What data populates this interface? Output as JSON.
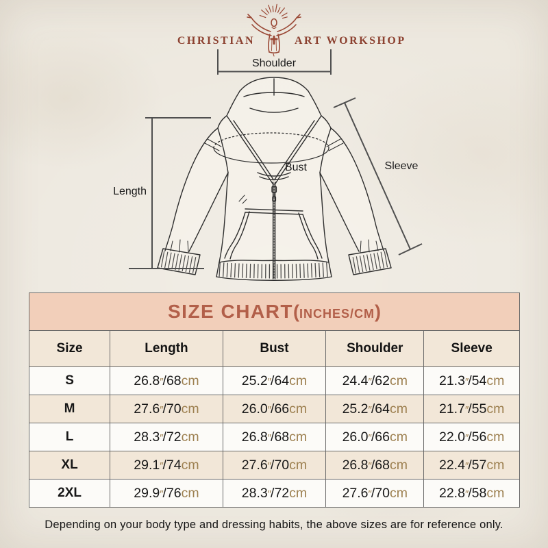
{
  "logo": {
    "left": "CHRISTIAN",
    "right": "ART WORKSHOP"
  },
  "diagram": {
    "shoulder_label": "Shoulder",
    "length_label": "Length",
    "bust_label": "Bust",
    "sleeve_label": "Sleeve"
  },
  "size_chart": {
    "title": "SIZE CHART",
    "paren_open": "(",
    "unit_note": "INCHES/CM",
    "paren_close": ")",
    "columns": [
      "Size",
      "Length",
      "Bust",
      "Shoulder",
      "Sleeve"
    ],
    "symbols": {
      "inch": "″",
      "separator": "/",
      "cm": "cm"
    },
    "rows": [
      {
        "size": "S",
        "measurements": [
          {
            "in": "26.8",
            "cm": "68"
          },
          {
            "in": "25.2",
            "cm": "64"
          },
          {
            "in": "24.4",
            "cm": "62"
          },
          {
            "in": "21.3",
            "cm": "54"
          }
        ]
      },
      {
        "size": "M",
        "measurements": [
          {
            "in": "27.6",
            "cm": "70"
          },
          {
            "in": "26.0",
            "cm": "66"
          },
          {
            "in": "25.2",
            "cm": "64"
          },
          {
            "in": "21.7",
            "cm": "55"
          }
        ]
      },
      {
        "size": "L",
        "measurements": [
          {
            "in": "28.3",
            "cm": "72"
          },
          {
            "in": "26.8",
            "cm": "68"
          },
          {
            "in": "26.0",
            "cm": "66"
          },
          {
            "in": "22.0",
            "cm": "56"
          }
        ]
      },
      {
        "size": "XL",
        "measurements": [
          {
            "in": "29.1",
            "cm": "74"
          },
          {
            "in": "27.6",
            "cm": "70"
          },
          {
            "in": "26.8",
            "cm": "68"
          },
          {
            "in": "22.4",
            "cm": "57"
          }
        ]
      },
      {
        "size": "2XL",
        "measurements": [
          {
            "in": "29.9",
            "cm": "76"
          },
          {
            "in": "28.3",
            "cm": "72"
          },
          {
            "in": "27.6",
            "cm": "70"
          },
          {
            "in": "22.8",
            "cm": "58"
          }
        ]
      }
    ]
  },
  "footer": {
    "note": "Depending on your body type and dressing habits, the above sizes are for reference only."
  },
  "colors": {
    "page_bg": "#ece7dd",
    "table_title_bg": "#f2cfba",
    "table_title_text": "#b25f49",
    "row_beige": "#f2e7d8",
    "row_white": "#fcfbf8",
    "table_border": "#696969",
    "accent_tan": "#9d8050",
    "text_black": "#171717",
    "logo_brown": "#8c4130",
    "sketch_line": "#2e2e2e",
    "dimension_line": "#4f4f4f"
  }
}
